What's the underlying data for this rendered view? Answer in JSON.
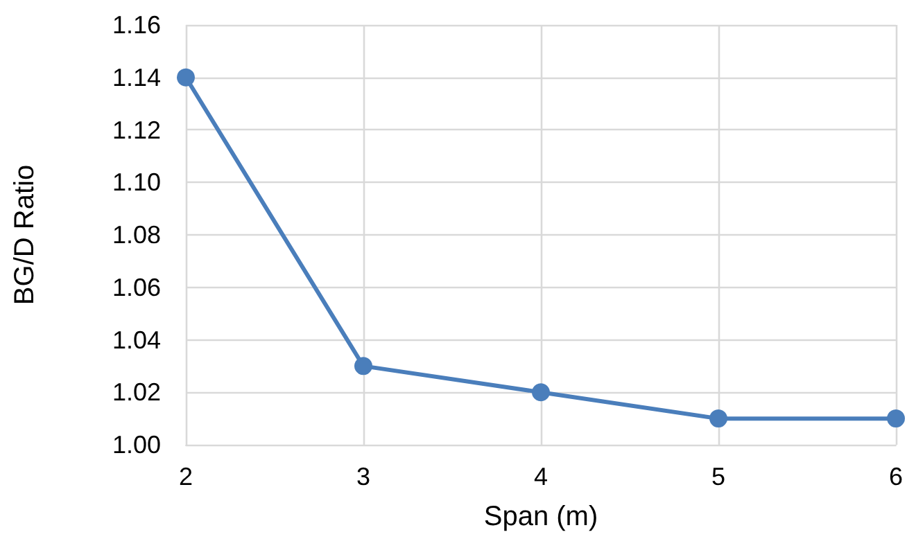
{
  "chart_data": {
    "type": "line",
    "xlabel": "Span (m)",
    "ylabel": "BG/D Ratio",
    "x": [
      2,
      3,
      4,
      5,
      6
    ],
    "series": [
      {
        "color": "#4a7ebb",
        "values": [
          1.14,
          1.03,
          1.02,
          1.01,
          1.01
        ]
      }
    ],
    "xlim": [
      2,
      6
    ],
    "xticks": [
      2,
      3,
      4,
      5,
      6
    ],
    "ylim": [
      1.0,
      1.16
    ],
    "yticks": [
      {
        "value": 1.0,
        "label": "1.00"
      },
      {
        "value": 1.02,
        "label": "1.02"
      },
      {
        "value": 1.04,
        "label": "1.04"
      },
      {
        "value": 1.06,
        "label": "1.06"
      },
      {
        "value": 1.08,
        "label": "1.08"
      },
      {
        "value": 1.1,
        "label": "1.10"
      },
      {
        "value": 1.12,
        "label": "1.12"
      },
      {
        "value": 1.14,
        "label": "1.14"
      },
      {
        "value": 1.16,
        "label": "1.16"
      }
    ],
    "grid": true,
    "marker": "circle",
    "line_style": "solid"
  }
}
